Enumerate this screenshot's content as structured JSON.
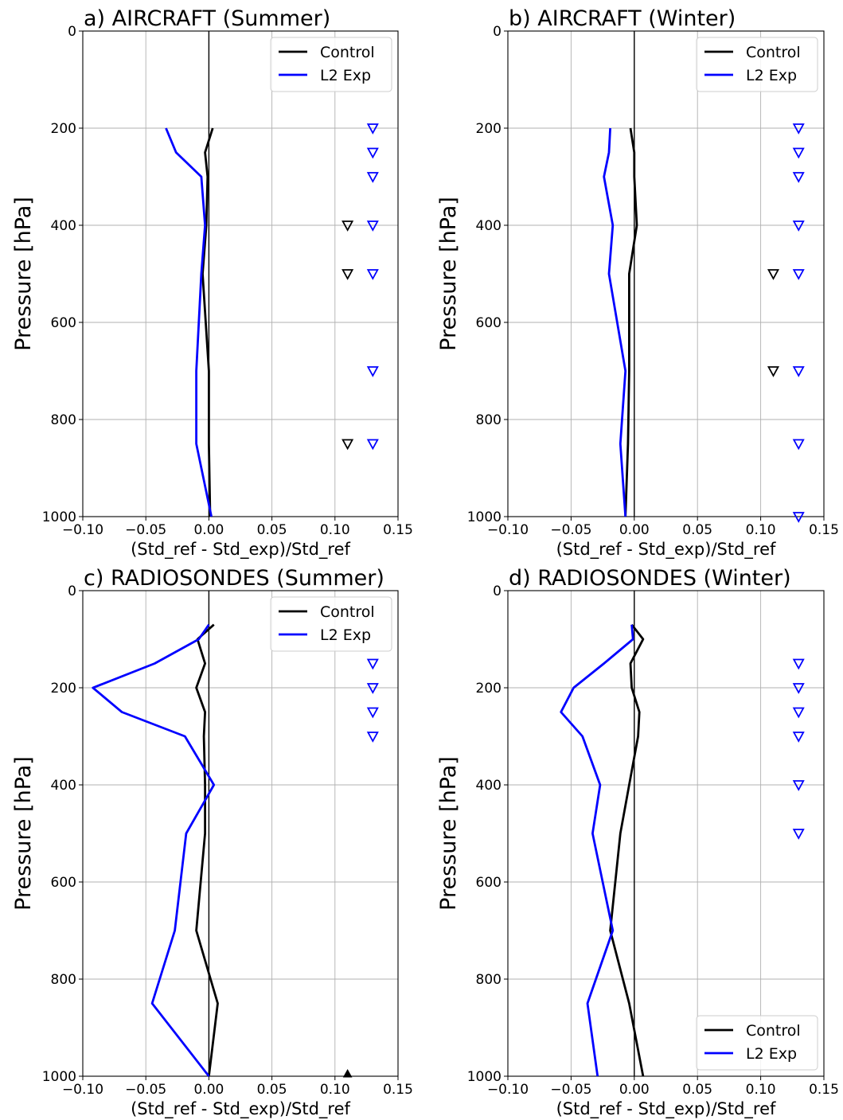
{
  "chart_data": [
    {
      "type": "line",
      "title": "a) AIRCRAFT (Summer)",
      "xlabel": "(Std_ref - Std_exp)/Std_ref",
      "ylabel": "Pressure [hPa]",
      "xlim": [
        -0.1,
        0.15
      ],
      "ylim": [
        1000,
        0
      ],
      "xticks": [
        "−0.10",
        "−0.05",
        "0.00",
        "0.05",
        "0.10",
        "0.15"
      ],
      "yticks": [
        "0",
        "200",
        "400",
        "600",
        "800",
        "1000"
      ],
      "grid": true,
      "legend_position": "upper right",
      "colors": {
        "Control": "#000000",
        "L2 Exp": "#0000ff"
      },
      "series": [
        {
          "name": "Control",
          "points": [
            [
              0.003,
              200
            ],
            [
              -0.003,
              250
            ],
            [
              -0.001,
              300
            ],
            [
              -0.002,
              400
            ],
            [
              -0.005,
              500
            ],
            [
              0.0,
              700
            ],
            [
              0.0,
              850
            ],
            [
              0.001,
              1000
            ]
          ]
        },
        {
          "name": "L2 Exp",
          "points": [
            [
              -0.034,
              200
            ],
            [
              -0.026,
              250
            ],
            [
              -0.006,
              300
            ],
            [
              -0.003,
              400
            ],
            [
              -0.006,
              500
            ],
            [
              -0.01,
              700
            ],
            [
              -0.01,
              850
            ],
            [
              0.002,
              1000
            ]
          ]
        }
      ],
      "significance_markers": [
        {
          "series": "Control",
          "x": 0.11,
          "pressures": [
            400,
            500,
            850
          ],
          "marker": "open-triangle-down"
        },
        {
          "series": "L2 Exp",
          "x": 0.13,
          "pressures": [
            200,
            250,
            300,
            400,
            500,
            700,
            850
          ],
          "marker": "open-triangle-down"
        }
      ]
    },
    {
      "type": "line",
      "title": "b) AIRCRAFT (Winter)",
      "xlabel": "(Std_ref - Std_exp)/Std_ref",
      "ylabel": "Pressure [hPa]",
      "xlim": [
        -0.1,
        0.15
      ],
      "ylim": [
        1000,
        0
      ],
      "xticks": [
        "−0.10",
        "−0.05",
        "0.00",
        "0.05",
        "0.10",
        "0.15"
      ],
      "yticks": [
        "0",
        "200",
        "400",
        "600",
        "800",
        "1000"
      ],
      "grid": true,
      "legend_position": "upper right",
      "colors": {
        "Control": "#000000",
        "L2 Exp": "#0000ff"
      },
      "series": [
        {
          "name": "Control",
          "points": [
            [
              -0.003,
              200
            ],
            [
              0.0,
              250
            ],
            [
              0.0,
              300
            ],
            [
              0.002,
              400
            ],
            [
              -0.004,
              500
            ],
            [
              -0.004,
              700
            ],
            [
              -0.005,
              850
            ],
            [
              -0.007,
              1000
            ]
          ]
        },
        {
          "name": "L2 Exp",
          "points": [
            [
              -0.019,
              200
            ],
            [
              -0.02,
              250
            ],
            [
              -0.024,
              300
            ],
            [
              -0.017,
              400
            ],
            [
              -0.02,
              500
            ],
            [
              -0.007,
              700
            ],
            [
              -0.011,
              850
            ],
            [
              -0.007,
              1000
            ]
          ]
        }
      ],
      "significance_markers": [
        {
          "series": "Control",
          "x": 0.11,
          "pressures": [
            500,
            700
          ],
          "marker": "open-triangle-down"
        },
        {
          "series": "L2 Exp",
          "x": 0.13,
          "pressures": [
            200,
            250,
            300,
            400,
            500,
            700,
            850,
            1000
          ],
          "marker": "open-triangle-down"
        }
      ]
    },
    {
      "type": "line",
      "title": "c) RADIOSONDES (Summer)",
      "xlabel": "(Std_ref - Std_exp)/Std_ref",
      "ylabel": "Pressure [hPa]",
      "xlim": [
        -0.1,
        0.15
      ],
      "ylim": [
        1000,
        0
      ],
      "xticks": [
        "−0.10",
        "−0.05",
        "0.00",
        "0.05",
        "0.10",
        "0.15"
      ],
      "yticks": [
        "0",
        "200",
        "400",
        "600",
        "800",
        "1000"
      ],
      "grid": true,
      "legend_position": "upper right",
      "colors": {
        "Control": "#000000",
        "L2 Exp": "#0000ff"
      },
      "series": [
        {
          "name": "Control",
          "points": [
            [
              0.004,
              70
            ],
            [
              -0.009,
              100
            ],
            [
              -0.003,
              150
            ],
            [
              -0.01,
              200
            ],
            [
              -0.003,
              250
            ],
            [
              -0.004,
              300
            ],
            [
              -0.003,
              400
            ],
            [
              -0.003,
              500
            ],
            [
              -0.01,
              700
            ],
            [
              0.007,
              850
            ],
            [
              0.0,
              1000
            ]
          ]
        },
        {
          "name": "L2 Exp",
          "points": [
            [
              0.0,
              70
            ],
            [
              -0.008,
              100
            ],
            [
              -0.043,
              150
            ],
            [
              -0.092,
              200
            ],
            [
              -0.069,
              250
            ],
            [
              -0.019,
              300
            ],
            [
              0.004,
              400
            ],
            [
              -0.018,
              500
            ],
            [
              -0.027,
              700
            ],
            [
              -0.045,
              850
            ],
            [
              0.0,
              1000
            ]
          ]
        }
      ],
      "significance_markers": [
        {
          "series": "Control",
          "x": 0.11,
          "pressures": [
            1000
          ],
          "marker": "filled-triangle-up"
        },
        {
          "series": "L2 Exp",
          "x": 0.13,
          "pressures": [
            150,
            200,
            250,
            300
          ],
          "marker": "open-triangle-down"
        }
      ]
    },
    {
      "type": "line",
      "title": "d) RADIOSONDES (Winter)",
      "xlabel": "(Std_ref - Std_exp)/Std_ref",
      "ylabel": "Pressure [hPa]",
      "xlim": [
        -0.1,
        0.15
      ],
      "ylim": [
        1000,
        0
      ],
      "xticks": [
        "−0.10",
        "−0.05",
        "0.00",
        "0.05",
        "0.10",
        "0.15"
      ],
      "yticks": [
        "0",
        "200",
        "400",
        "600",
        "800",
        "1000"
      ],
      "grid": true,
      "legend_position": "lower right",
      "colors": {
        "Control": "#000000",
        "L2 Exp": "#0000ff"
      },
      "series": [
        {
          "name": "Control",
          "points": [
            [
              -0.002,
              70
            ],
            [
              0.007,
              100
            ],
            [
              -0.003,
              150
            ],
            [
              -0.002,
              200
            ],
            [
              0.004,
              250
            ],
            [
              0.003,
              300
            ],
            [
              -0.004,
              400
            ],
            [
              -0.011,
              500
            ],
            [
              -0.019,
              700
            ],
            [
              -0.004,
              850
            ],
            [
              0.007,
              1000
            ]
          ]
        },
        {
          "name": "L2 Exp",
          "points": [
            [
              -0.002,
              70
            ],
            [
              -0.001,
              100
            ],
            [
              -0.024,
              150
            ],
            [
              -0.048,
              200
            ],
            [
              -0.058,
              250
            ],
            [
              -0.041,
              300
            ],
            [
              -0.027,
              400
            ],
            [
              -0.033,
              500
            ],
            [
              -0.017,
              700
            ],
            [
              -0.037,
              850
            ],
            [
              -0.029,
              1000
            ]
          ]
        }
      ],
      "significance_markers": [
        {
          "series": "L2 Exp",
          "x": 0.13,
          "pressures": [
            150,
            200,
            250,
            300,
            400,
            500
          ],
          "marker": "open-triangle-down"
        }
      ]
    }
  ]
}
